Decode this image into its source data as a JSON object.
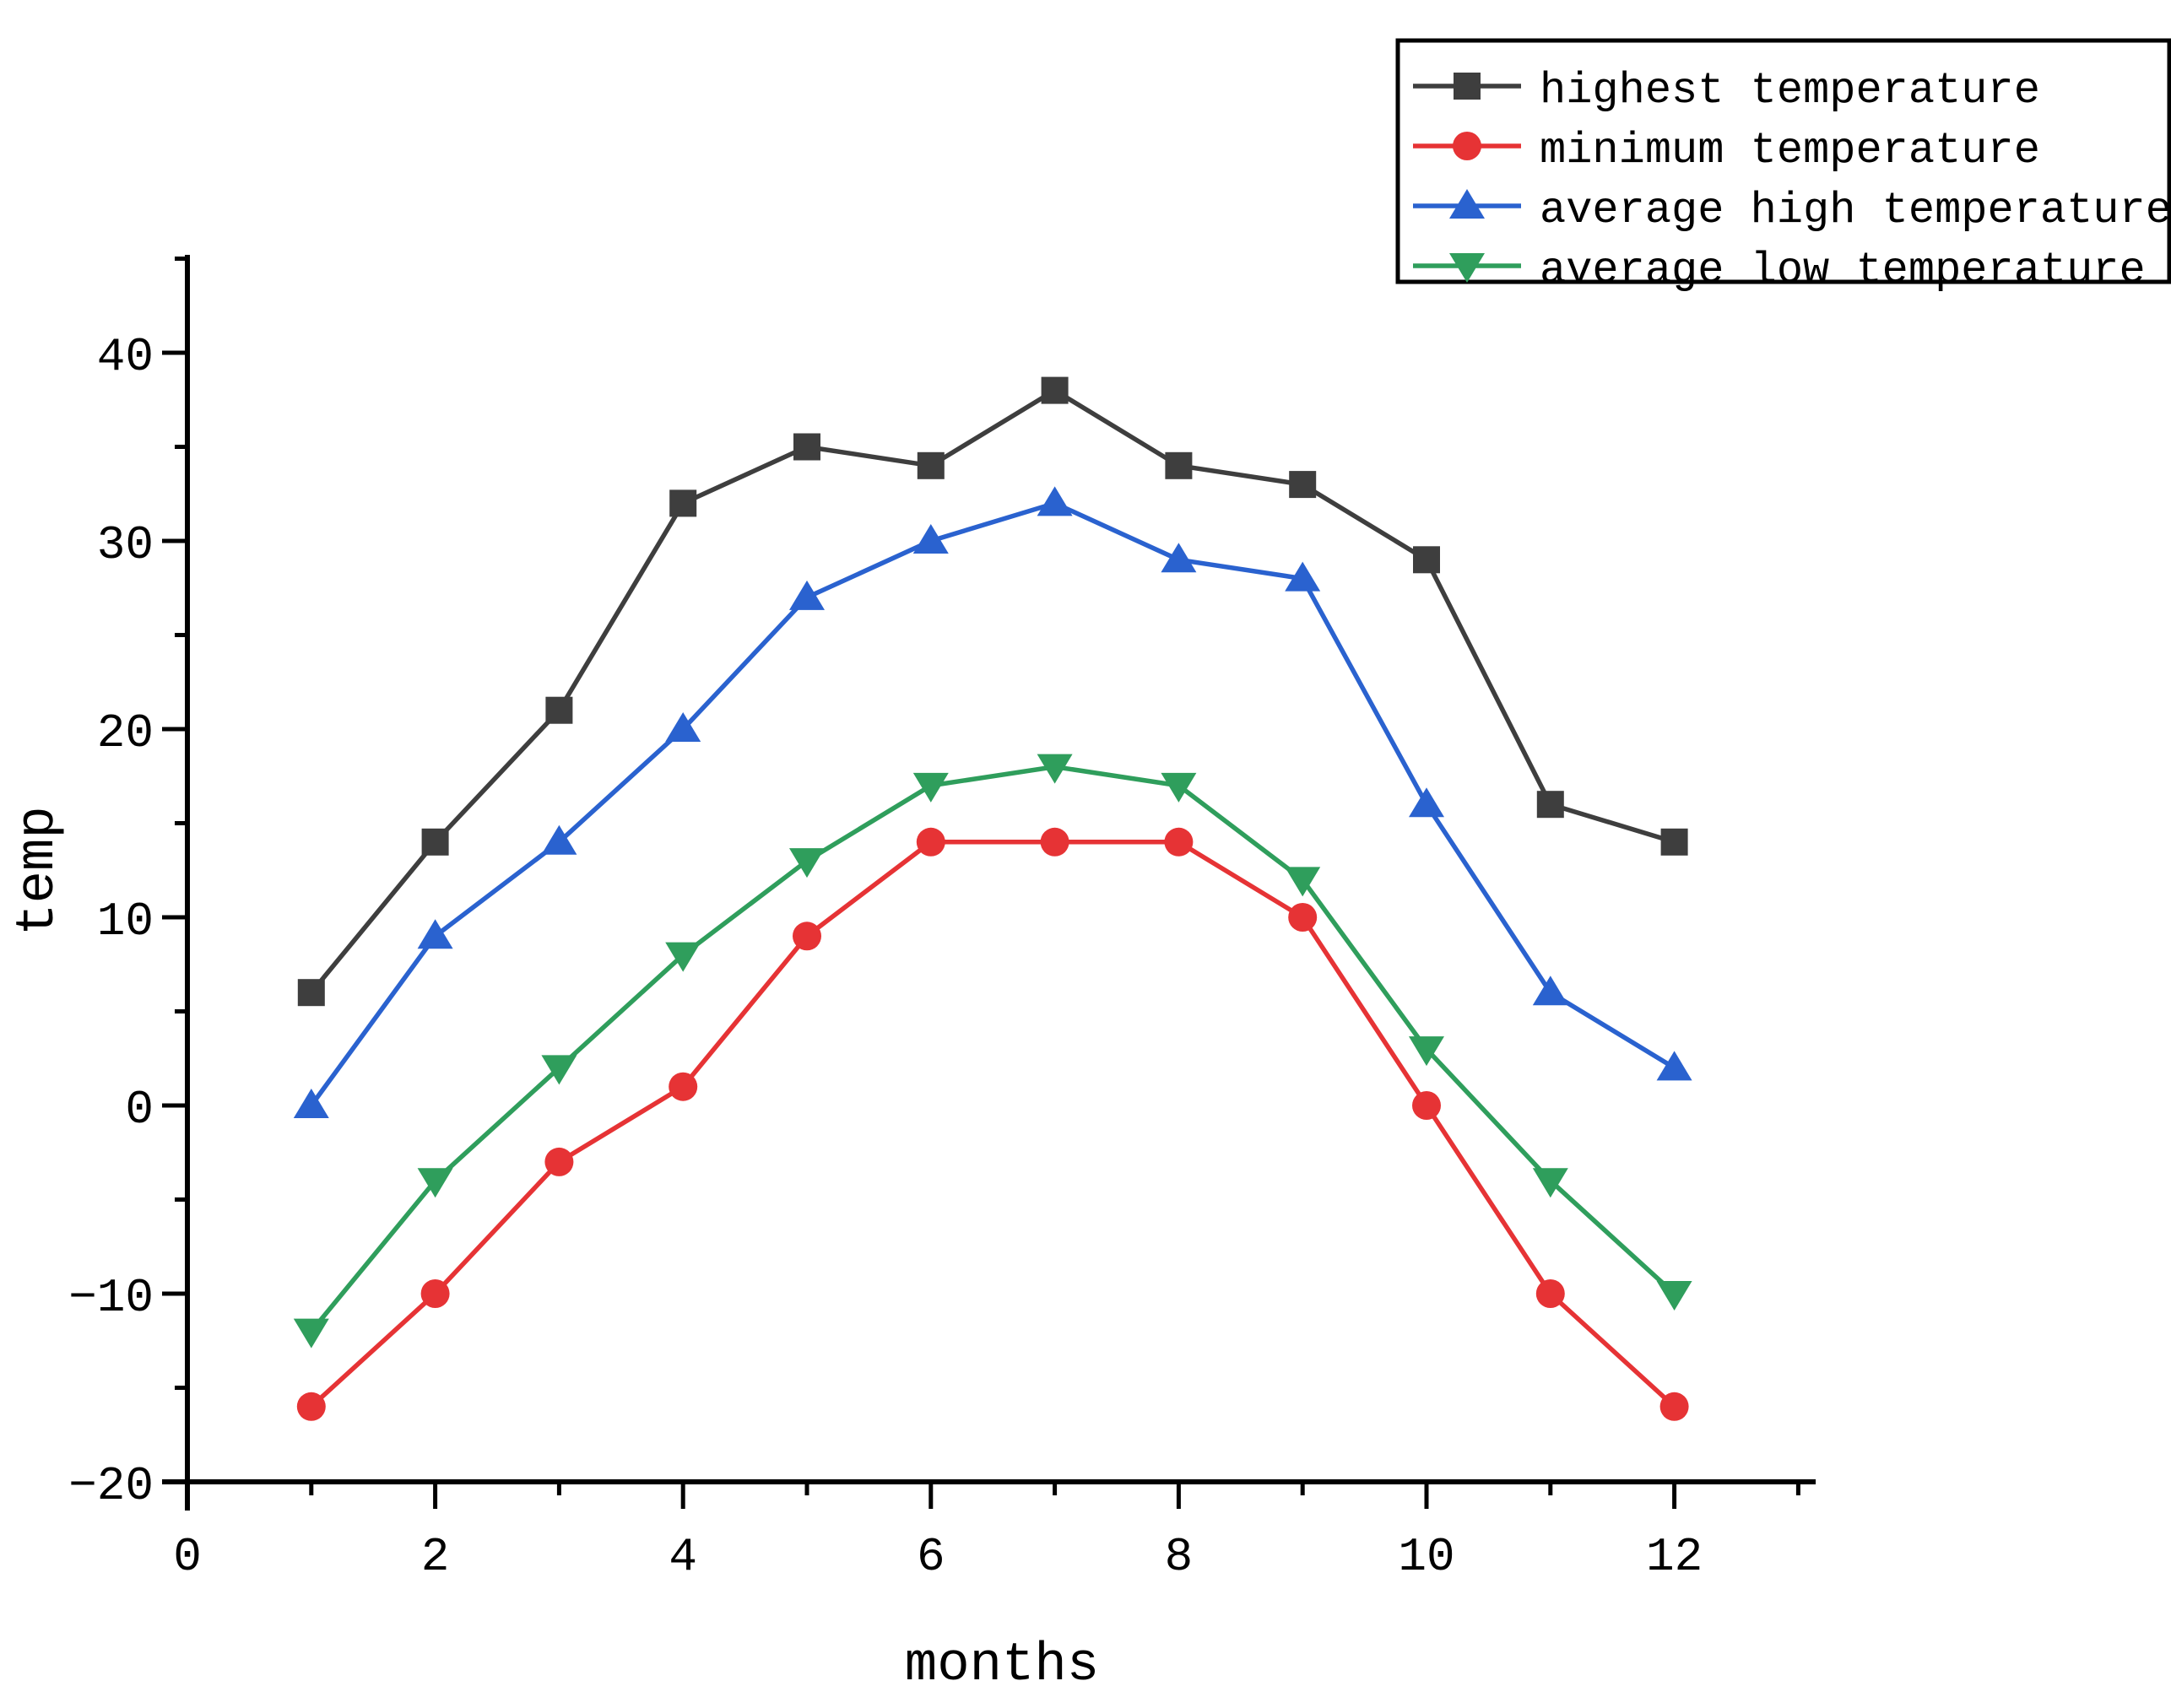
{
  "chart_data": {
    "type": "line",
    "title": "",
    "xlabel": "months",
    "ylabel": "temp",
    "x": [
      1,
      2,
      3,
      4,
      5,
      6,
      7,
      8,
      9,
      10,
      11,
      12
    ],
    "series": [
      {
        "name": "highest temperature",
        "color": "#3e3e3e",
        "marker": "square",
        "values": [
          6,
          14,
          21,
          32,
          35,
          34,
          38,
          34,
          33,
          29,
          16,
          14
        ]
      },
      {
        "name": "minimum temperature",
        "color": "#e63335",
        "marker": "circle",
        "values": [
          -16,
          -10,
          -3,
          1,
          9,
          14,
          14,
          14,
          10,
          0,
          -10,
          -16
        ]
      },
      {
        "name": "average high temperature",
        "color": "#2a62cf",
        "marker": "triangle-up",
        "values": [
          0,
          9,
          14,
          20,
          27,
          30,
          32,
          29,
          28,
          16,
          6,
          2
        ]
      },
      {
        "name": "average low temperature",
        "color": "#2f9e5c",
        "marker": "triangle-down",
        "values": [
          -12,
          -4,
          2,
          8,
          13,
          17,
          18,
          17,
          12,
          3,
          -4,
          -10
        ]
      }
    ],
    "axes": {
      "xticks_major": [
        0,
        2,
        4,
        6,
        8,
        10,
        12
      ],
      "xticks_minor": [
        1,
        3,
        5,
        7,
        9,
        11,
        13
      ],
      "yticks_major": [
        -20,
        -10,
        0,
        10,
        20,
        30,
        40
      ],
      "yticks_minor": [
        -15,
        -5,
        5,
        15,
        25,
        35,
        45
      ],
      "xlim": [
        0,
        13.1
      ],
      "ylim": [
        -20,
        45.2
      ],
      "grid": false,
      "legend_position": "top-right"
    },
    "axis_color": "#000000",
    "tick_label_color": "#000000",
    "background_color": "#ffffff"
  }
}
